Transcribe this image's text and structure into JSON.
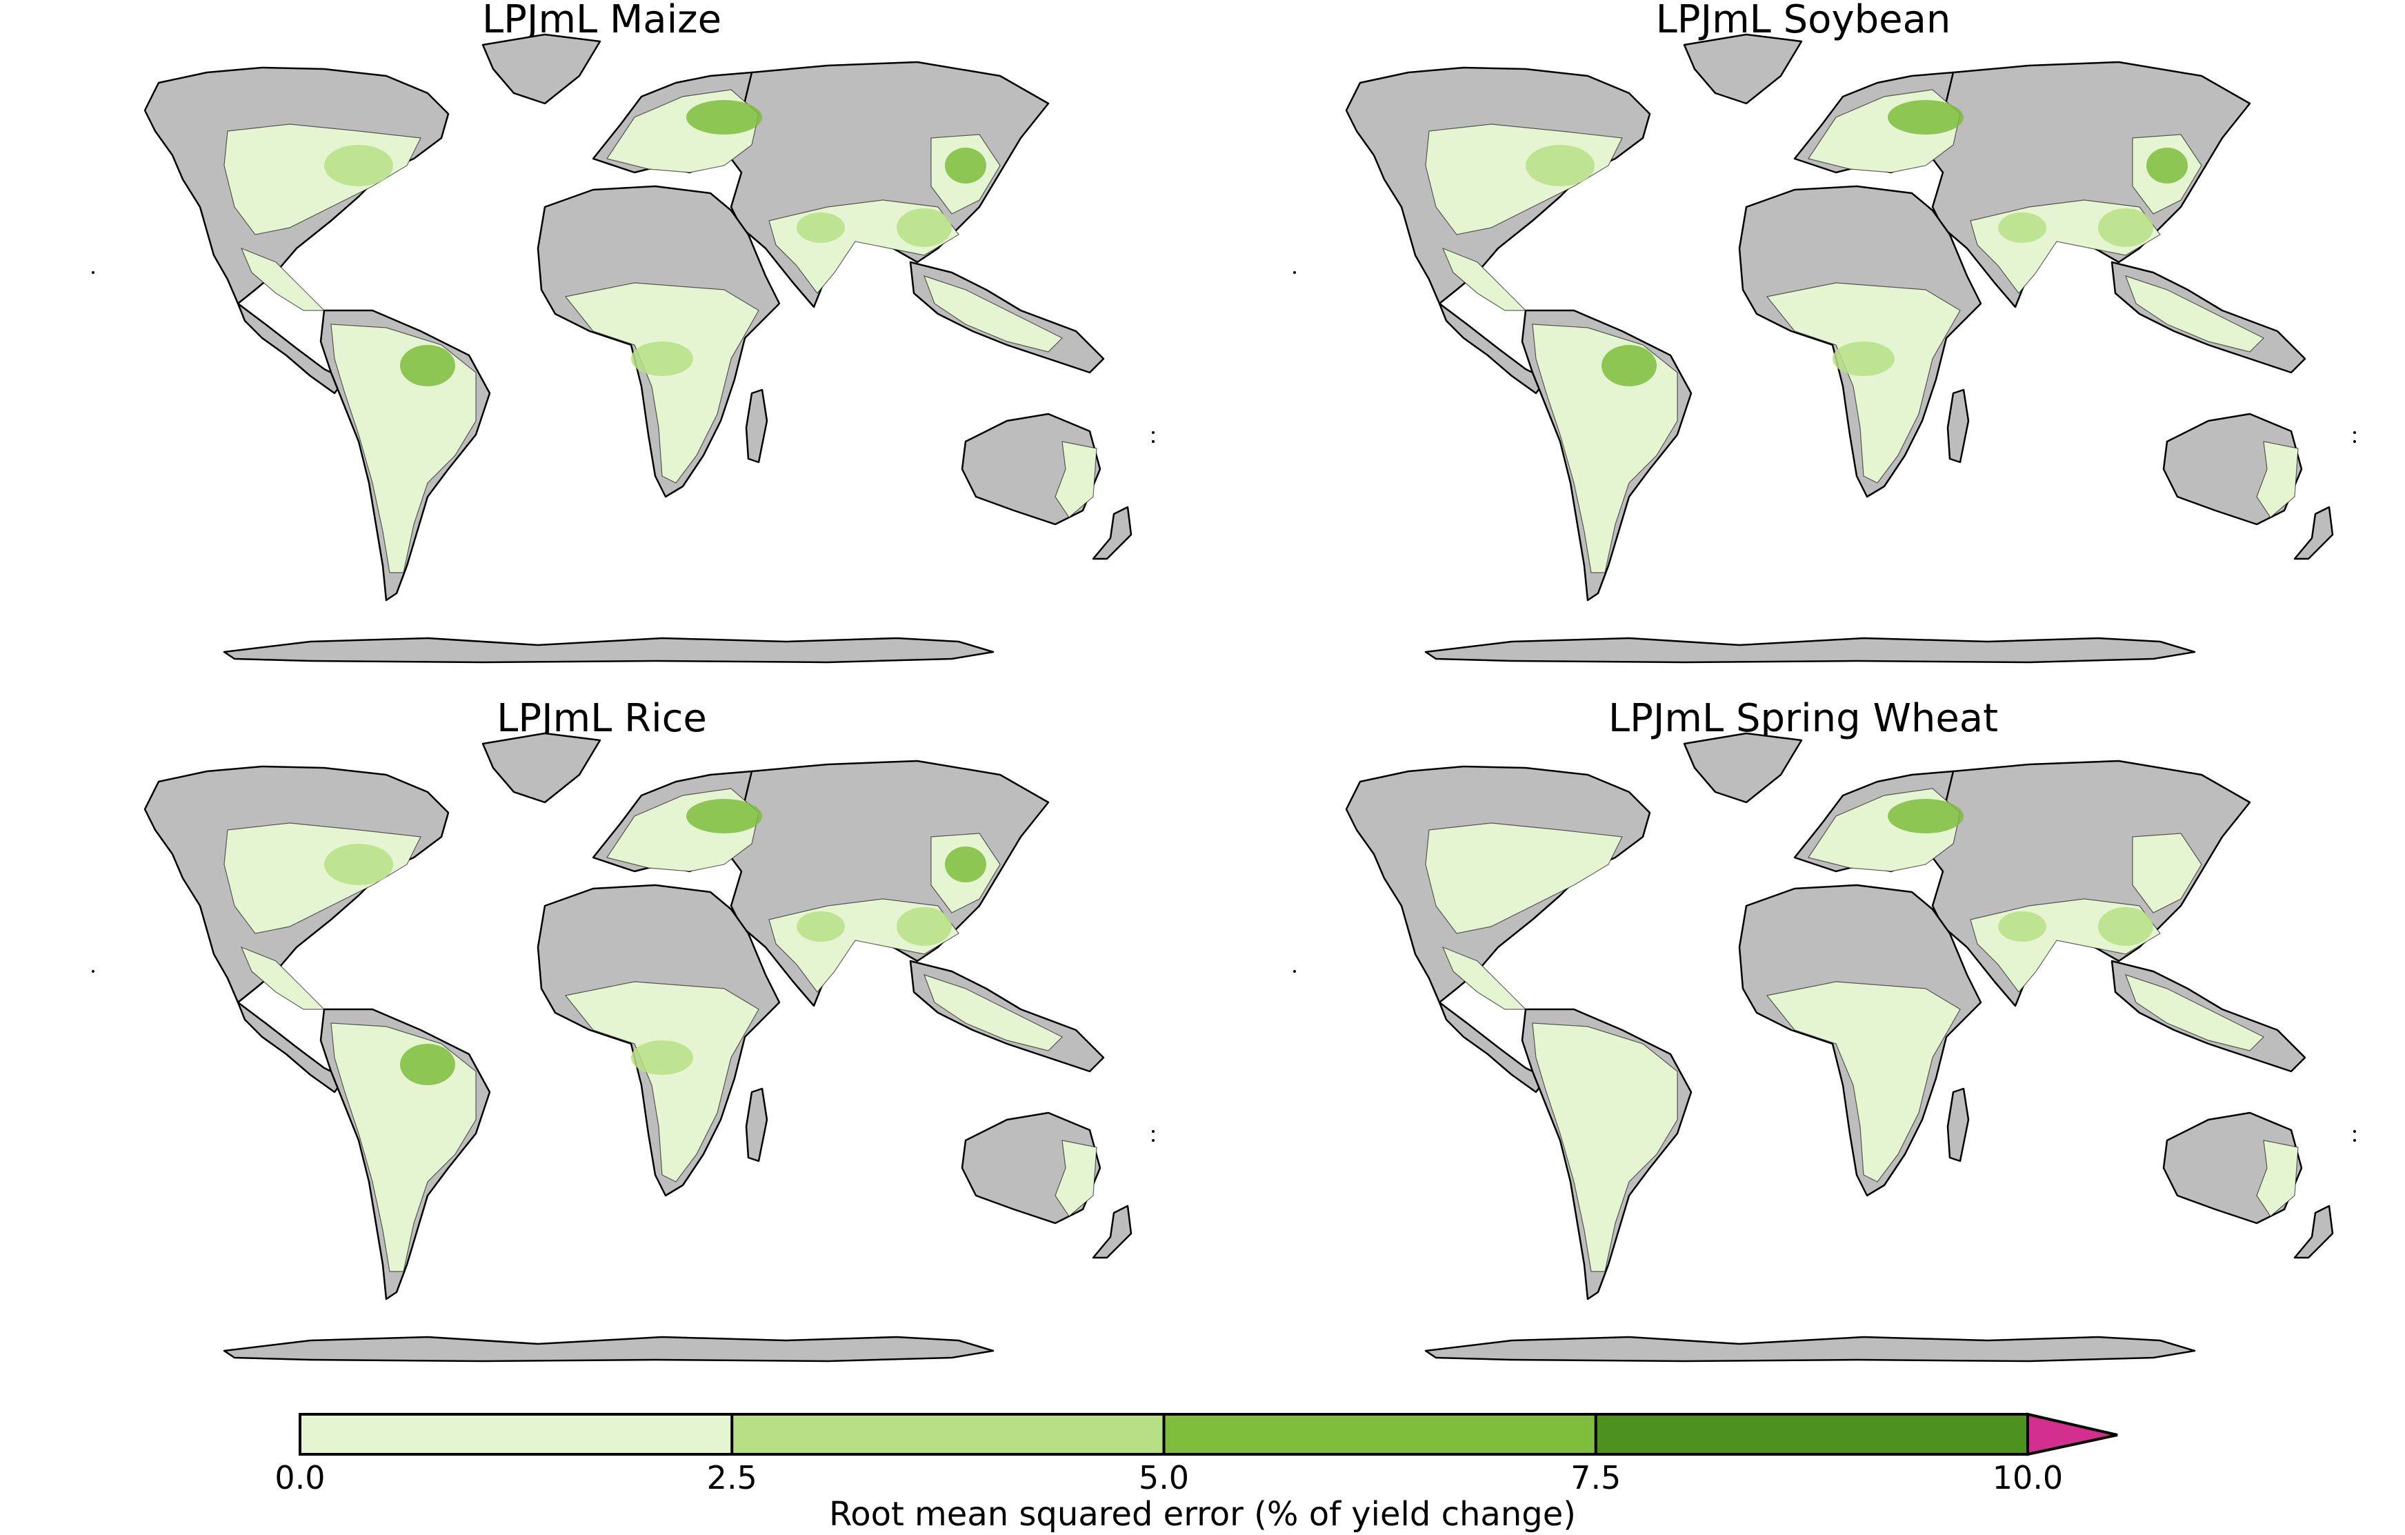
{
  "panels": [
    {
      "title": "LPJmL Maize",
      "extent": "medium"
    },
    {
      "title": "LPJmL Soybean",
      "extent": "medium"
    },
    {
      "title": "LPJmL Rice",
      "extent": "medium"
    },
    {
      "title": "LPJmL Spring Wheat",
      "extent": "low"
    }
  ],
  "colorbar": {
    "label": "Root mean squared error (% of yield change)",
    "ticks": [
      "0.0",
      "2.5",
      "5.0",
      "7.5",
      "10.0"
    ],
    "colors": [
      "#e5f5d2",
      "#b7e086",
      "#7fbd3e",
      "#4d921e"
    ],
    "over_color": "#d42e8e",
    "no_data_color": "#bdbdbd"
  }
}
